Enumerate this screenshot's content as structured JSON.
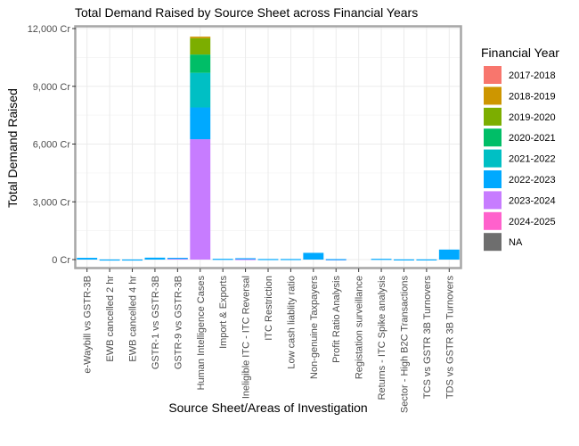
{
  "chart_data": {
    "type": "bar",
    "stacked": true,
    "title": "Total Demand Raised by Source Sheet across Financial Years",
    "xlabel": "Source Sheet/Areas of Investigation",
    "ylabel": "Total Demand Raised",
    "ylim": [
      -500,
      12000
    ],
    "y_ticks": [
      0,
      3000,
      6000,
      9000,
      12000
    ],
    "y_tick_labels": [
      "0 Cr",
      "3,000 Cr",
      "6,000 Cr",
      "9,000 Cr",
      "12,000 Cr"
    ],
    "grid": true,
    "legend_title": "Financial Year",
    "legend_position": "right",
    "categories": [
      "e-Waybill vs GSTR-3B",
      "EWB cancelled  2 hr",
      "EWB cancelled  4 hr",
      "GSTR-1 vs GSTR-3B",
      "GSTR-9 vs GSTR-3B",
      "Human Intelligence Cases",
      "Import & Exports",
      "Ineligible ITC - ITC Reversal",
      "ITC Restriction",
      "Low cash liablity ratio",
      "Non-genuine Taxpayers",
      "Profit Ratio Analysis",
      "Registation surveillance",
      "Returns - ITC Spike analysis",
      "Sector - High B2C Transactions",
      "TCS vs GSTR 3B Turnovers",
      "TDS vs GSTR 3B Turnovers"
    ],
    "series": [
      {
        "name": "2017-2018",
        "color": "#F8766D",
        "values": [
          0,
          0,
          0,
          0,
          0,
          0,
          0,
          0,
          0,
          0,
          0,
          0,
          0,
          0,
          0,
          0,
          0
        ]
      },
      {
        "name": "2018-2019",
        "color": "#CD9600",
        "values": [
          0,
          0,
          0,
          0,
          0,
          80,
          0,
          0,
          0,
          0,
          0,
          0,
          0,
          0,
          0,
          0,
          0
        ]
      },
      {
        "name": "2019-2020",
        "color": "#7CAE00",
        "values": [
          0,
          0,
          0,
          0,
          0,
          850,
          0,
          0,
          0,
          0,
          0,
          0,
          0,
          0,
          0,
          0,
          0
        ]
      },
      {
        "name": "2020-2021",
        "color": "#00BE67",
        "values": [
          0,
          0,
          0,
          0,
          0,
          950,
          0,
          0,
          0,
          0,
          0,
          0,
          0,
          0,
          0,
          0,
          0
        ]
      },
      {
        "name": "2021-2022",
        "color": "#00BFC4",
        "values": [
          0,
          0,
          0,
          0,
          0,
          1800,
          0,
          0,
          0,
          0,
          0,
          0,
          0,
          0,
          0,
          0,
          0
        ]
      },
      {
        "name": "2022-2023",
        "color": "#00A9FF",
        "values": [
          90,
          5,
          5,
          100,
          30,
          1650,
          40,
          40,
          30,
          30,
          350,
          10,
          0,
          40,
          10,
          10,
          520
        ]
      },
      {
        "name": "2023-2024",
        "color": "#C77CFF",
        "values": [
          0,
          0,
          0,
          0,
          60,
          6250,
          0,
          30,
          0,
          0,
          0,
          15,
          0,
          0,
          0,
          0,
          0
        ]
      },
      {
        "name": "2024-2025",
        "color": "#FF61CC",
        "values": [
          0,
          0,
          0,
          0,
          0,
          0,
          0,
          0,
          0,
          0,
          0,
          0,
          0,
          0,
          0,
          0,
          0
        ]
      },
      {
        "name": "NA",
        "color": "#6E6E6E",
        "values": [
          0,
          0,
          0,
          0,
          0,
          0,
          0,
          0,
          0,
          0,
          0,
          0,
          0,
          0,
          0,
          0,
          0
        ]
      }
    ]
  }
}
